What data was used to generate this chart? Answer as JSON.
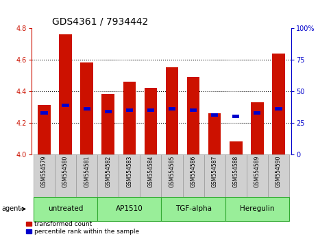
{
  "title": "GDS4361 / 7934442",
  "samples": [
    "GSM554579",
    "GSM554580",
    "GSM554581",
    "GSM554582",
    "GSM554583",
    "GSM554584",
    "GSM554585",
    "GSM554586",
    "GSM554587",
    "GSM554588",
    "GSM554589",
    "GSM554590"
  ],
  "red_values": [
    4.31,
    4.76,
    4.58,
    4.38,
    4.46,
    4.42,
    4.55,
    4.49,
    4.26,
    4.08,
    4.33,
    4.64
  ],
  "blue_values": [
    4.26,
    4.31,
    4.29,
    4.27,
    4.28,
    4.28,
    4.29,
    4.28,
    4.25,
    4.24,
    4.26,
    4.29
  ],
  "ylim": [
    4.0,
    4.8
  ],
  "yticks": [
    4.0,
    4.2,
    4.4,
    4.6,
    4.8
  ],
  "y2lim": [
    0,
    100
  ],
  "y2ticks": [
    0,
    25,
    50,
    75,
    100
  ],
  "y2ticklabels": [
    "0",
    "25",
    "50",
    "75",
    "100%"
  ],
  "groups": [
    {
      "label": "untreated",
      "start": 0,
      "end": 2
    },
    {
      "label": "AP1510",
      "start": 3,
      "end": 5
    },
    {
      "label": "TGF-alpha",
      "start": 6,
      "end": 8
    },
    {
      "label": "Heregulin",
      "start": 9,
      "end": 11
    }
  ],
  "bar_width": 0.6,
  "red_color": "#cc1100",
  "blue_color": "#0000cc",
  "bg_color": "#ffffff",
  "sample_box_color": "#d0d0d0",
  "sample_box_edge": "#999999",
  "group_fill": "#99ee99",
  "group_edge": "#33aa33",
  "agent_label": "agent",
  "legend_red": "transformed count",
  "legend_blue": "percentile rank within the sample",
  "title_fontsize": 10,
  "tick_fontsize": 7,
  "sample_fontsize": 5.5,
  "group_fontsize": 7.5,
  "legend_fontsize": 6.5
}
